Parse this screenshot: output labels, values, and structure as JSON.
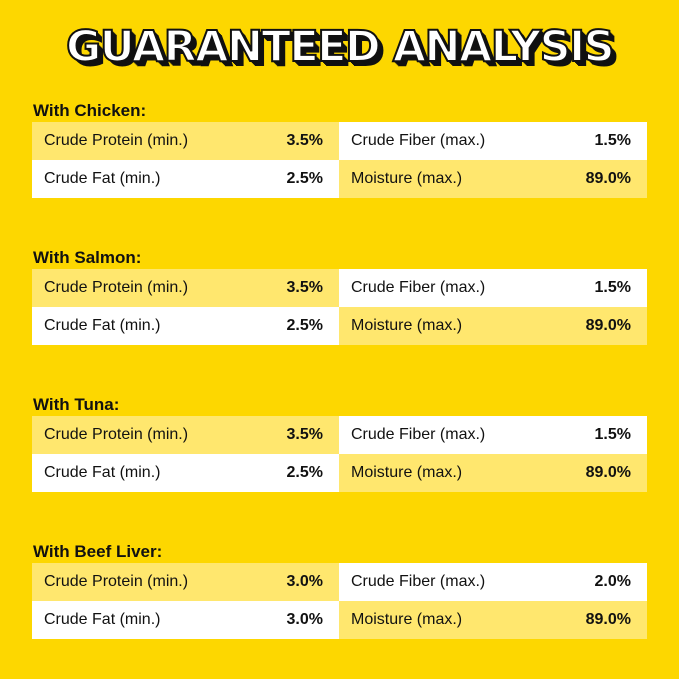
{
  "title": "GUARANTEED ANALYSIS",
  "colors": {
    "background": "#FDD700",
    "cell_light": "#FFE76E",
    "cell_white": "#FFFFFF"
  },
  "sections": [
    {
      "heading": "With Chicken:",
      "rows": [
        [
          {
            "label": "Crude Protein (min.)",
            "value": "3.5%"
          },
          {
            "label": "Crude Fiber (max.)",
            "value": "1.5%"
          }
        ],
        [
          {
            "label": "Crude Fat (min.)",
            "value": "2.5%"
          },
          {
            "label": "Moisture (max.)",
            "value": "89.0%"
          }
        ]
      ]
    },
    {
      "heading": "With Salmon:",
      "rows": [
        [
          {
            "label": "Crude Protein (min.)",
            "value": "3.5%"
          },
          {
            "label": "Crude Fiber (max.)",
            "value": "1.5%"
          }
        ],
        [
          {
            "label": "Crude Fat (min.)",
            "value": "2.5%"
          },
          {
            "label": "Moisture (max.)",
            "value": "89.0%"
          }
        ]
      ]
    },
    {
      "heading": "With Tuna:",
      "rows": [
        [
          {
            "label": "Crude Protein (min.)",
            "value": "3.5%"
          },
          {
            "label": "Crude Fiber (max.)",
            "value": "1.5%"
          }
        ],
        [
          {
            "label": "Crude Fat (min.)",
            "value": "2.5%"
          },
          {
            "label": "Moisture (max.)",
            "value": "89.0%"
          }
        ]
      ]
    },
    {
      "heading": "With Beef Liver:",
      "rows": [
        [
          {
            "label": "Crude Protein (min.)",
            "value": "3.0%"
          },
          {
            "label": "Crude Fiber (max.)",
            "value": "2.0%"
          }
        ],
        [
          {
            "label": "Crude Fat (min.)",
            "value": "3.0%"
          },
          {
            "label": "Moisture (max.)",
            "value": "89.0%"
          }
        ]
      ]
    }
  ]
}
